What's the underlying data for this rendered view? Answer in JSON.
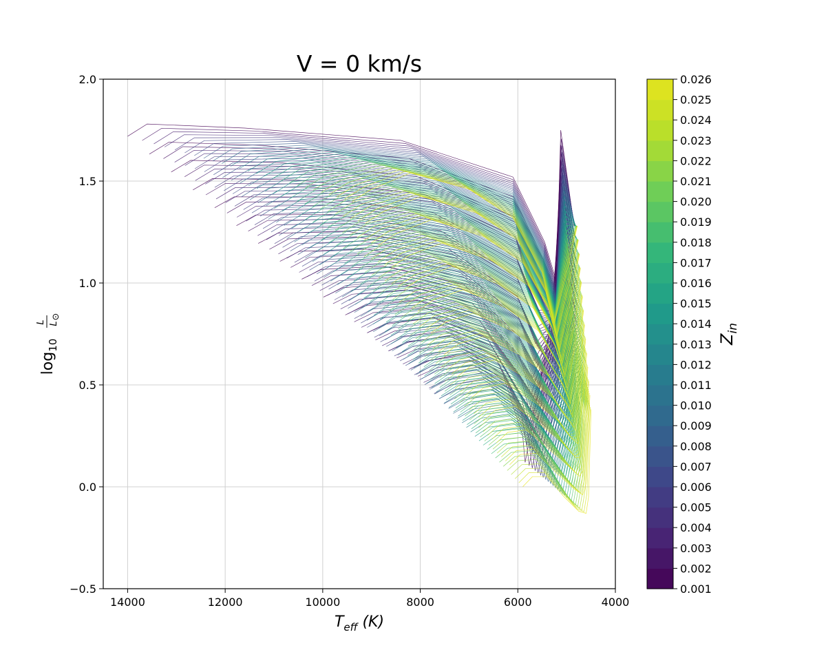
{
  "chart_data": {
    "type": "line",
    "title": "V = 0 km/s",
    "xlabel": {
      "main": "T",
      "sub": "eff",
      "unit": " (K)"
    },
    "ylabel": {
      "log": "log",
      "base": "10",
      "num": "L",
      "den": "L",
      "den_sub": "⊙"
    },
    "xlim": [
      14500,
      4000
    ],
    "ylim": [
      -0.5,
      2.0
    ],
    "x_ticks": [
      14000,
      12000,
      10000,
      8000,
      6000,
      4000
    ],
    "x_tick_labels": [
      "14000",
      "12000",
      "10000",
      "8000",
      "6000",
      "4000"
    ],
    "y_ticks": [
      -0.5,
      0.0,
      0.5,
      1.0,
      1.5,
      2.0
    ],
    "y_tick_labels": [
      "−0.5",
      "0.0",
      "0.5",
      "1.0",
      "1.5",
      "2.0"
    ],
    "grid": true,
    "colormap": "viridis",
    "colorbar": {
      "label": {
        "main": "Z",
        "sub": "in"
      },
      "min": 0.001,
      "max": 0.026,
      "step": 0.001,
      "tick_labels": [
        "0.001",
        "0.002",
        "0.003",
        "0.004",
        "0.005",
        "0.006",
        "0.007",
        "0.008",
        "0.009",
        "0.010",
        "0.011",
        "0.012",
        "0.013",
        "0.014",
        "0.015",
        "0.016",
        "0.017",
        "0.018",
        "0.019",
        "0.020",
        "0.021",
        "0.022",
        "0.023",
        "0.024",
        "0.025",
        "0.026"
      ]
    },
    "series_description_points": {
      "low_Z_upper_envelope": [
        [
          14000,
          1.74
        ],
        [
          12000,
          1.8
        ],
        [
          10000,
          1.78
        ],
        [
          8000,
          1.7
        ],
        [
          6000,
          1.55
        ],
        [
          5400,
          1.22
        ],
        [
          5150,
          1.75
        ],
        [
          4800,
          1.25
        ]
      ],
      "low_Z_lower_envelope": [
        [
          14000,
          1.72
        ],
        [
          12000,
          1.35
        ],
        [
          10000,
          0.95
        ],
        [
          8200,
          0.58
        ],
        [
          6000,
          0.25
        ],
        [
          5850,
          0.12
        ]
      ],
      "high_Z_upper_envelope": [
        [
          9500,
          1.45
        ],
        [
          8500,
          1.55
        ],
        [
          7000,
          1.45
        ],
        [
          6000,
          1.3
        ],
        [
          5400,
          1.0
        ],
        [
          5200,
          0.75
        ],
        [
          4800,
          1.28
        ]
      ],
      "high_Z_lower_envelope": [
        [
          9500,
          1.4
        ],
        [
          8000,
          1.05
        ],
        [
          6800,
          0.55
        ],
        [
          6000,
          0.15
        ],
        [
          5500,
          -0.05
        ],
        [
          4600,
          -0.13
        ],
        [
          4500,
          0.35
        ]
      ]
    }
  }
}
